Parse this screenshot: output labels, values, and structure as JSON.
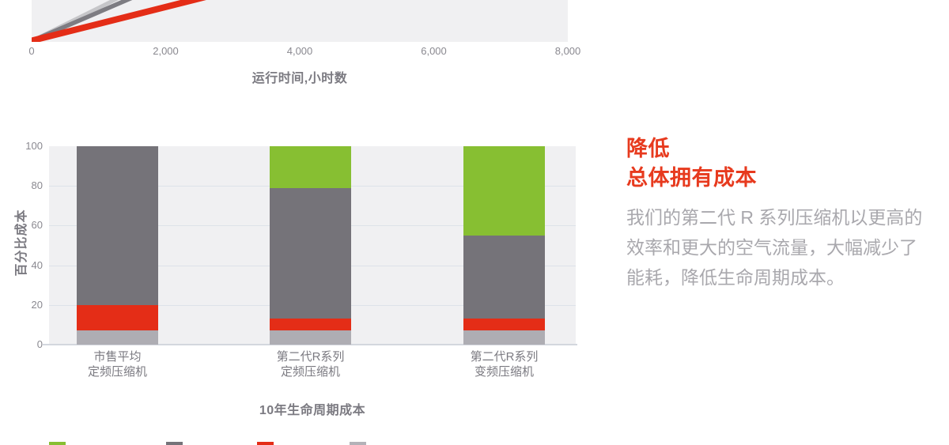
{
  "right_panel": {
    "heading_lines": [
      "降低",
      "总体拥有成本"
    ],
    "paragraph_lines": [
      "我们的第二代 R 系列压缩机以更高的",
      "效率和更大的空气流量，大幅减少了",
      "能耗，降低生命周期成本。"
    ],
    "heading_color": "#e73a1e",
    "body_color": "#a9a8ad"
  },
  "chart_data": [
    {
      "id": "runtime-line-chart",
      "type": "line",
      "xlabel": "运行时间,小时数",
      "xlim": [
        0,
        8000
      ],
      "x_ticks": [
        {
          "value": 0,
          "label": "0"
        },
        {
          "value": 2000,
          "label": "2,000"
        },
        {
          "value": 4000,
          "label": "4,000"
        },
        {
          "value": 6000,
          "label": "6,000"
        },
        {
          "value": 8000,
          "label": "8,000"
        }
      ],
      "note": "chart cropped at top edge; three cost lines rise from origin",
      "series": [
        {
          "name": "line-light-gray",
          "color": "#c6c6c9",
          "width": 5,
          "start_x": 0,
          "top_exit_x": 1330
        },
        {
          "name": "line-dark-gray",
          "color": "#7d7c82",
          "width": 5.5,
          "start_x": 0,
          "top_exit_x": 1530
        },
        {
          "name": "line-red",
          "color": "#e42d17",
          "width": 8,
          "start_x": 0,
          "top_exit_x": 2600
        }
      ],
      "plot_bg": "#f0f0f2"
    },
    {
      "id": "lifecycle-cost-bars",
      "type": "bar",
      "stacked": true,
      "ylabel": "百分比成本",
      "xlabel": "10年生命周期成本",
      "ylim": [
        0,
        100
      ],
      "y_ticks": [
        0,
        20,
        40,
        60,
        80,
        100
      ],
      "grid_values": [
        20,
        40,
        60,
        80
      ],
      "grid_on": true,
      "categories": [
        {
          "lines": [
            "市售平均",
            "定频压缩机"
          ]
        },
        {
          "lines": [
            "第二代R系列",
            "定频压缩机"
          ]
        },
        {
          "lines": [
            "第二代R系列",
            "变频压缩机"
          ]
        }
      ],
      "series": [
        {
          "name": "segment-light-gray",
          "color": "#aeadb3",
          "values": [
            7,
            7,
            7
          ]
        },
        {
          "name": "segment-red",
          "color": "#e42d17",
          "values": [
            13,
            6,
            6
          ]
        },
        {
          "name": "segment-dark-gray",
          "color": "#757379",
          "values": [
            80,
            66,
            42
          ]
        },
        {
          "name": "segment-green",
          "color": "#87bf32",
          "values": [
            0,
            21,
            45
          ]
        }
      ],
      "legend": {
        "position": "bottom",
        "labels_visible": false,
        "swatch_colors": [
          "#87bf32",
          "#757379",
          "#e42d17",
          "#b3b2b8"
        ]
      },
      "plot_bg": "#f0f0f2"
    }
  ]
}
